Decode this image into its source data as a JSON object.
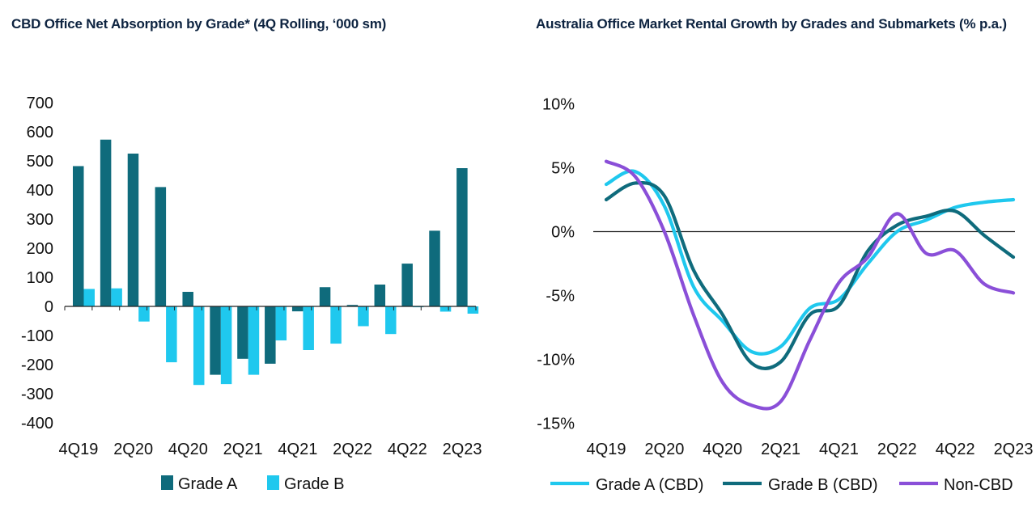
{
  "charts": {
    "left_title": "CBD Office Net Absorption by Grade* (4Q Rolling, ‘000 sm)",
    "right_title": "Australia Office Market Rental Growth by Grades and Submarkets (% p.a.)"
  },
  "colors": {
    "dark_teal": "#0f6b7c",
    "cyan": "#1fc8ee",
    "purple": "#8a4fd8"
  },
  "chart_data": [
    {
      "type": "bar",
      "categories": [
        "4Q19",
        "1Q20",
        "2Q20",
        "3Q20",
        "4Q20",
        "1Q21",
        "2Q21",
        "3Q21",
        "4Q21",
        "1Q22",
        "2Q22",
        "3Q22",
        "4Q22",
        "1Q23",
        "2Q23"
      ],
      "tick_labels": [
        "4Q19",
        "2Q20",
        "4Q20",
        "2Q21",
        "4Q21",
        "2Q22",
        "4Q22",
        "2Q23"
      ],
      "y_tick_labels": [
        "700",
        "600",
        "500",
        "400",
        "300",
        "200",
        "100",
        "0",
        "-100",
        "-200",
        "-300",
        "-400"
      ],
      "series": [
        {
          "name": "Grade A",
          "values": [
            482,
            573,
            525,
            410,
            50,
            -235,
            -180,
            -197,
            -17,
            66,
            5,
            75,
            147,
            260,
            475
          ]
        },
        {
          "name": "Grade B",
          "values": [
            60,
            62,
            -52,
            -192,
            -270,
            -267,
            -235,
            -117,
            -150,
            -128,
            -68,
            -95,
            -3,
            -18,
            -25
          ]
        }
      ],
      "ylim": [
        -400,
        700
      ],
      "xlabel": "",
      "ylabel": "",
      "legend": "bottom"
    },
    {
      "type": "line",
      "x": [
        "4Q19",
        "1Q20",
        "2Q20",
        "3Q20",
        "4Q20",
        "1Q21",
        "2Q21",
        "3Q21",
        "4Q21",
        "1Q22",
        "2Q22",
        "3Q22",
        "4Q22",
        "1Q23",
        "2Q23"
      ],
      "tick_labels": [
        "4Q19",
        "2Q20",
        "4Q20",
        "2Q21",
        "4Q21",
        "2Q22",
        "4Q22",
        "2Q23"
      ],
      "y_tick_labels": [
        "10%",
        "5%",
        "0%",
        "-5%",
        "-10%",
        "-15%"
      ],
      "series": [
        {
          "name": "Grade A (CBD)",
          "values": [
            3.7,
            4.7,
            2.0,
            -4.3,
            -7.0,
            -9.4,
            -9.0,
            -6.0,
            -5.3,
            -2.5,
            0.0,
            0.9,
            1.9,
            2.3,
            2.5
          ]
        },
        {
          "name": "Grade B (CBD)",
          "values": [
            2.5,
            3.8,
            2.8,
            -3.0,
            -6.5,
            -10.3,
            -10.2,
            -6.5,
            -5.8,
            -1.5,
            0.5,
            1.2,
            1.6,
            -0.3,
            -2.0
          ]
        },
        {
          "name": "Non-CBD",
          "values": [
            5.5,
            4.3,
            0.0,
            -6.5,
            -11.8,
            -13.6,
            -13.3,
            -8.5,
            -4.0,
            -2.0,
            1.4,
            -1.7,
            -1.5,
            -4.1,
            -4.8
          ]
        }
      ],
      "ylim": [
        -15,
        10
      ],
      "xlabel": "",
      "ylabel": "",
      "legend": "bottom"
    }
  ]
}
